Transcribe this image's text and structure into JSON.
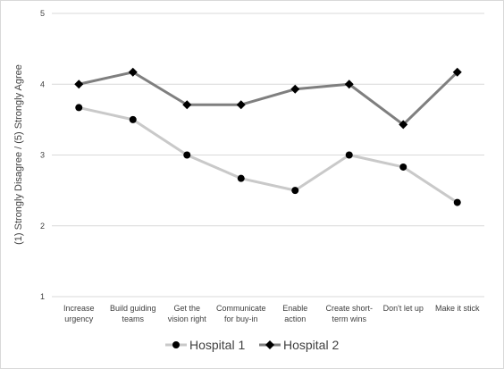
{
  "chart_data": {
    "type": "line",
    "y_label": "(1) Strongly Disagree / (5) Strongly Agree",
    "categories": [
      "Increase\nurgency",
      "Build guiding\nteams",
      "Get the\nvision right",
      "Communicate\nfor buy-in",
      "Enable\naction",
      "Create short-\nterm wins",
      "Don't let up",
      "Make it stick"
    ],
    "series": [
      {
        "name": "Hospital 1",
        "color": "#c9c9c9",
        "marker": "circle",
        "values": [
          3.67,
          3.5,
          3.0,
          2.67,
          2.5,
          3.0,
          2.83,
          2.33
        ]
      },
      {
        "name": "Hospital 2",
        "color": "#7f7f7f",
        "marker": "diamond",
        "values": [
          4.0,
          4.17,
          3.71,
          3.71,
          3.93,
          4.0,
          3.43,
          4.17
        ]
      }
    ],
    "ylim": [
      1,
      5
    ],
    "yticks": [
      1,
      2,
      3,
      4,
      5
    ],
    "grid": true,
    "legend": "bottom"
  }
}
